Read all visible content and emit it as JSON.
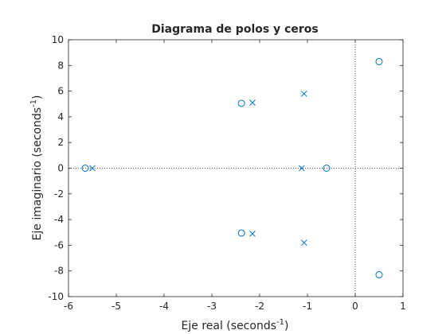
{
  "chart_data": {
    "type": "scatter",
    "title": "Diagrama de polos y ceros",
    "xlabel": {
      "main": "Eje real (seconds",
      "sup": "-1",
      "tail": ")"
    },
    "ylabel": {
      "main": "Eje imaginario (seconds",
      "sup": "-1",
      "tail": ")"
    },
    "xlim": [
      -6,
      1
    ],
    "ylim": [
      -10,
      10
    ],
    "xticks": [
      -6,
      -5,
      -4,
      -3,
      -2,
      -1,
      0,
      1
    ],
    "yticks": [
      -10,
      -8,
      -6,
      -4,
      -2,
      0,
      2,
      4,
      6,
      8,
      10
    ],
    "grid": false,
    "reference_lines": {
      "x": 0,
      "y": 0,
      "style": "dotted"
    },
    "color": "#0072BD",
    "poles": [
      {
        "x": -2.15,
        "y": 5.1
      },
      {
        "x": -2.15,
        "y": -5.1
      },
      {
        "x": -1.07,
        "y": 5.8
      },
      {
        "x": -1.07,
        "y": -5.8
      },
      {
        "x": -5.5,
        "y": 0
      },
      {
        "x": -1.12,
        "y": 0
      }
    ],
    "zeros": [
      {
        "x": -2.38,
        "y": 5.05
      },
      {
        "x": -2.38,
        "y": -5.05
      },
      {
        "x": 0.5,
        "y": 8.3
      },
      {
        "x": 0.5,
        "y": -8.3
      },
      {
        "x": -5.65,
        "y": 0
      },
      {
        "x": -0.6,
        "y": 0
      }
    ]
  }
}
